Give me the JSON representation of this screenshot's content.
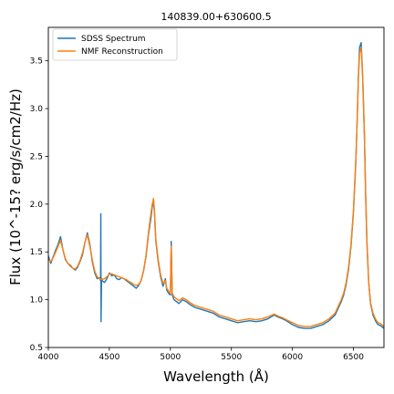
{
  "chart_data": {
    "type": "line",
    "title": "140839.00+630600.5",
    "xlabel": "Wavelength (Å)",
    "ylabel": "Flux (10^-15? erg/s/cm2/Hz)",
    "xlim": [
      4000,
      6750
    ],
    "ylim": [
      0.5,
      3.85
    ],
    "xticks": [
      4000,
      4500,
      5000,
      5500,
      6000,
      6500
    ],
    "yticks": [
      0.5,
      1.0,
      1.5,
      2.0,
      2.5,
      3.0,
      3.5
    ],
    "xtick_labels": [
      "4000",
      "4500",
      "5000",
      "5500",
      "6000",
      "6500"
    ],
    "ytick_labels": [
      "0.5",
      "1.0",
      "1.5",
      "2.0",
      "2.5",
      "3.0",
      "3.5"
    ],
    "legend_position": "top-left",
    "grid": false,
    "series": [
      {
        "name": "SDSS Spectrum",
        "color": "#1f77b4",
        "x": [
          4000,
          4020,
          4040,
          4060,
          4080,
          4100,
          4120,
          4140,
          4160,
          4180,
          4200,
          4220,
          4240,
          4260,
          4280,
          4300,
          4320,
          4340,
          4360,
          4380,
          4400,
          4420,
          4428,
          4430,
          4432,
          4436,
          4440,
          4460,
          4480,
          4500,
          4520,
          4540,
          4560,
          4580,
          4600,
          4620,
          4640,
          4660,
          4680,
          4700,
          4720,
          4740,
          4760,
          4780,
          4800,
          4820,
          4840,
          4850,
          4862,
          4870,
          4880,
          4900,
          4920,
          4940,
          4959,
          4970,
          4990,
          5000,
          5007,
          5015,
          5030,
          5050,
          5070,
          5100,
          5130,
          5160,
          5200,
          5250,
          5300,
          5350,
          5400,
          5450,
          5500,
          5550,
          5600,
          5650,
          5700,
          5750,
          5800,
          5850,
          5880,
          5920,
          5950,
          6000,
          6050,
          6100,
          6150,
          6200,
          6250,
          6300,
          6350,
          6400,
          6420,
          6440,
          6460,
          6480,
          6500,
          6520,
          6530,
          6540,
          6550,
          6563,
          6575,
          6590,
          6600,
          6610,
          6625,
          6640,
          6660,
          6680,
          6700,
          6720,
          6740,
          6750
        ],
        "y": [
          1.46,
          1.38,
          1.45,
          1.52,
          1.58,
          1.66,
          1.52,
          1.42,
          1.38,
          1.36,
          1.33,
          1.31,
          1.34,
          1.4,
          1.47,
          1.6,
          1.7,
          1.58,
          1.4,
          1.28,
          1.22,
          1.23,
          1.2,
          1.9,
          0.77,
          1.22,
          1.2,
          1.18,
          1.22,
          1.28,
          1.25,
          1.26,
          1.22,
          1.21,
          1.23,
          1.22,
          1.2,
          1.18,
          1.16,
          1.14,
          1.12,
          1.15,
          1.2,
          1.3,
          1.45,
          1.68,
          1.85,
          1.96,
          2.04,
          1.9,
          1.62,
          1.4,
          1.24,
          1.14,
          1.22,
          1.1,
          1.06,
          1.05,
          1.61,
          1.05,
          1.0,
          0.98,
          0.96,
          1.0,
          0.98,
          0.95,
          0.92,
          0.9,
          0.88,
          0.86,
          0.82,
          0.8,
          0.78,
          0.76,
          0.77,
          0.78,
          0.77,
          0.78,
          0.8,
          0.84,
          0.82,
          0.8,
          0.78,
          0.74,
          0.71,
          0.7,
          0.7,
          0.72,
          0.74,
          0.78,
          0.84,
          0.98,
          1.05,
          1.16,
          1.32,
          1.56,
          1.92,
          2.46,
          2.86,
          3.32,
          3.64,
          3.69,
          3.36,
          2.72,
          2.1,
          1.62,
          1.18,
          0.96,
          0.84,
          0.78,
          0.74,
          0.73,
          0.71,
          0.7
        ],
        "note": ""
      },
      {
        "name": "NMF Reconstruction",
        "color": "#ff7f0e",
        "x": [
          4000,
          4020,
          4040,
          4060,
          4080,
          4100,
          4120,
          4140,
          4160,
          4180,
          4200,
          4220,
          4240,
          4260,
          4280,
          4300,
          4320,
          4340,
          4360,
          4380,
          4400,
          4420,
          4440,
          4460,
          4480,
          4500,
          4520,
          4540,
          4560,
          4580,
          4600,
          4620,
          4640,
          4660,
          4680,
          4700,
          4720,
          4740,
          4760,
          4780,
          4800,
          4820,
          4840,
          4850,
          4862,
          4870,
          4880,
          4900,
          4920,
          4940,
          4959,
          4970,
          4990,
          5000,
          5007,
          5015,
          5030,
          5050,
          5070,
          5100,
          5130,
          5160,
          5200,
          5250,
          5300,
          5350,
          5400,
          5450,
          5500,
          5550,
          5600,
          5650,
          5700,
          5750,
          5800,
          5850,
          5880,
          5920,
          5950,
          6000,
          6050,
          6100,
          6150,
          6200,
          6250,
          6300,
          6350,
          6400,
          6420,
          6440,
          6460,
          6480,
          6500,
          6520,
          6530,
          6540,
          6550,
          6563,
          6575,
          6590,
          6600,
          6610,
          6625,
          6640,
          6660,
          6680,
          6700,
          6720,
          6740,
          6750
        ],
        "y": [
          1.42,
          1.4,
          1.44,
          1.5,
          1.56,
          1.62,
          1.52,
          1.43,
          1.38,
          1.35,
          1.33,
          1.32,
          1.35,
          1.41,
          1.49,
          1.6,
          1.68,
          1.56,
          1.42,
          1.3,
          1.24,
          1.22,
          1.21,
          1.22,
          1.24,
          1.27,
          1.27,
          1.26,
          1.25,
          1.24,
          1.23,
          1.22,
          1.21,
          1.19,
          1.18,
          1.16,
          1.15,
          1.16,
          1.2,
          1.3,
          1.46,
          1.7,
          1.9,
          1.99,
          2.06,
          1.92,
          1.64,
          1.42,
          1.26,
          1.17,
          1.2,
          1.12,
          1.08,
          1.07,
          1.56,
          1.07,
          1.03,
          1.01,
          0.99,
          1.02,
          1.0,
          0.97,
          0.94,
          0.92,
          0.9,
          0.88,
          0.84,
          0.82,
          0.8,
          0.78,
          0.79,
          0.8,
          0.79,
          0.8,
          0.82,
          0.85,
          0.83,
          0.81,
          0.79,
          0.76,
          0.73,
          0.72,
          0.72,
          0.74,
          0.76,
          0.8,
          0.86,
          1.0,
          1.07,
          1.18,
          1.34,
          1.58,
          1.94,
          2.48,
          2.86,
          3.3,
          3.58,
          3.64,
          3.34,
          2.7,
          2.08,
          1.6,
          1.18,
          0.97,
          0.86,
          0.8,
          0.76,
          0.75,
          0.73,
          0.72
        ]
      }
    ]
  }
}
